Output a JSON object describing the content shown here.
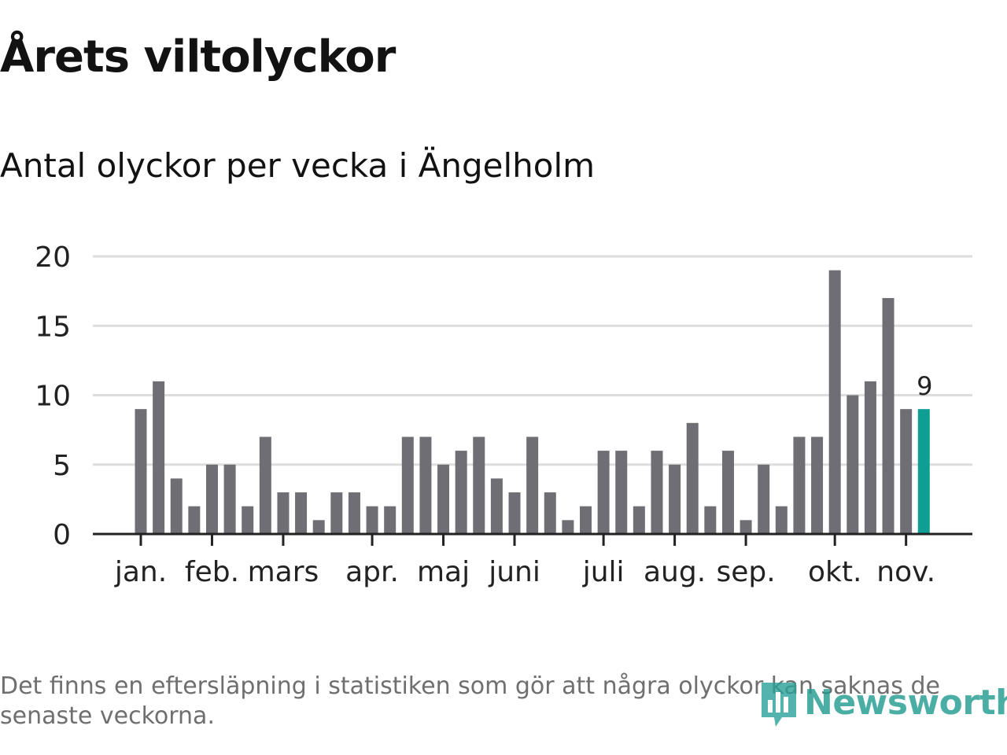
{
  "title": "Årets viltolyckor",
  "subtitle": "Antal olyckor per vecka i Ängelholm",
  "footnote": "Det finns en eftersläpning i statistiken som gör att några olyckor kan saknas de senaste veckorna.",
  "logo_text": "Newsworthy",
  "colors": {
    "bar": "#6f6e74",
    "highlight": "#0f9e94",
    "grid": "#dddddd",
    "axis": "#222222",
    "text": "#222222"
  },
  "chart_data": {
    "type": "bar",
    "title": "Årets viltolyckor",
    "subtitle": "Antal olyckor per vecka i Ängelholm",
    "xlabel": "",
    "ylabel": "",
    "ylim": [
      0,
      20
    ],
    "yticks": [
      0,
      5,
      10,
      15,
      20
    ],
    "grid": true,
    "values": [
      9,
      11,
      4,
      2,
      5,
      5,
      2,
      7,
      3,
      3,
      1,
      3,
      3,
      2,
      2,
      7,
      7,
      5,
      6,
      7,
      4,
      3,
      7,
      3,
      1,
      2,
      6,
      6,
      2,
      6,
      5,
      8,
      2,
      6,
      1,
      5,
      2,
      7,
      7,
      19,
      10,
      11,
      17,
      9,
      9
    ],
    "highlight_index": 44,
    "highlight_label": "9",
    "month_ticks": [
      {
        "label": "jan.",
        "week_index": 0.0
      },
      {
        "label": "feb.",
        "week_index": 4.0
      },
      {
        "label": "mars",
        "week_index": 8.0
      },
      {
        "label": "apr.",
        "week_index": 13.0
      },
      {
        "label": "maj",
        "week_index": 17.0
      },
      {
        "label": "juni",
        "week_index": 21.0
      },
      {
        "label": "juli",
        "week_index": 26.0
      },
      {
        "label": "aug.",
        "week_index": 30.0
      },
      {
        "label": "sep.",
        "week_index": 34.0
      },
      {
        "label": "okt.",
        "week_index": 39.0
      },
      {
        "label": "nov.",
        "week_index": 43.0
      }
    ]
  }
}
